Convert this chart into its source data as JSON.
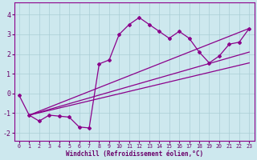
{
  "bg_color": "#cde8ee",
  "grid_color": "#aacdd5",
  "line_color": "#8b008b",
  "marker_color": "#8b008b",
  "xlabel": "Windchill (Refroidissement éolien,°C)",
  "xlim": [
    -0.5,
    23.5
  ],
  "ylim": [
    -2.4,
    4.6
  ],
  "yticks": [
    -2,
    -1,
    0,
    1,
    2,
    3,
    4
  ],
  "xticks": [
    0,
    1,
    2,
    3,
    4,
    5,
    6,
    7,
    8,
    9,
    10,
    11,
    12,
    13,
    14,
    15,
    16,
    17,
    18,
    19,
    20,
    21,
    22,
    23
  ],
  "series1_x": [
    0,
    1,
    2,
    3,
    4,
    5,
    6,
    7,
    8,
    9,
    10,
    11,
    12,
    13,
    14,
    15,
    16,
    17,
    18,
    19,
    20,
    21,
    22,
    23
  ],
  "series1_y": [
    -0.1,
    -1.1,
    -1.4,
    -1.1,
    -1.15,
    -1.2,
    -1.7,
    -1.75,
    1.5,
    1.7,
    3.0,
    3.5,
    3.85,
    3.5,
    3.15,
    2.8,
    3.15,
    2.8,
    2.1,
    1.55,
    1.9,
    2.5,
    2.6,
    3.3
  ],
  "trend1_x": [
    1,
    23
  ],
  "trend1_y": [
    -1.1,
    2.1
  ],
  "trend2_x": [
    1,
    23
  ],
  "trend2_y": [
    -1.1,
    3.3
  ],
  "trend3_x": [
    1,
    23
  ],
  "trend3_y": [
    -1.1,
    1.55
  ]
}
